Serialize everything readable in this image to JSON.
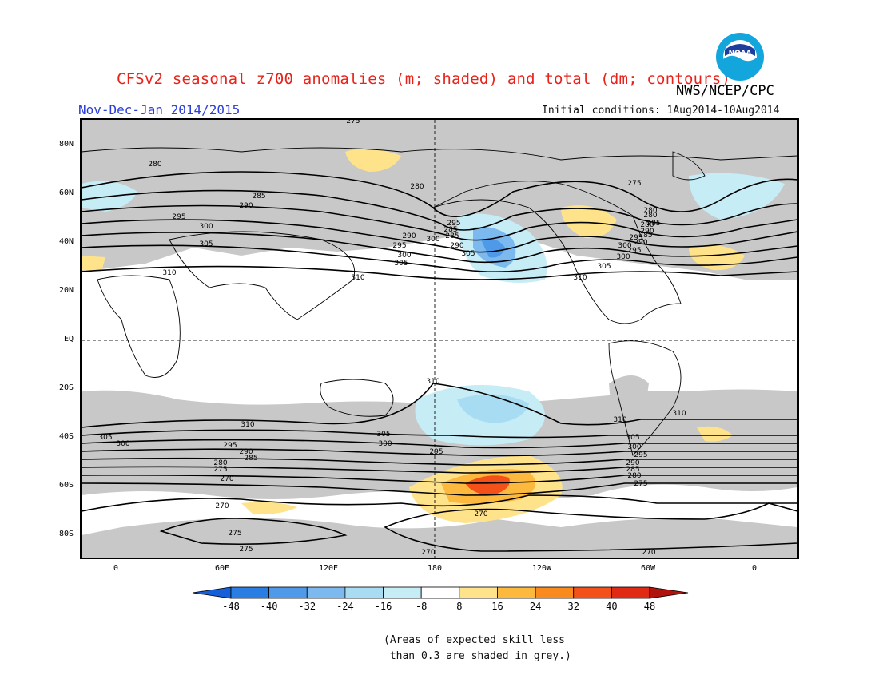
{
  "title": "CFSv2 seasonal z700 anomalies (m; shaded) and total (dm; contours)",
  "agency": "NWS/NCEP/CPC",
  "logo_text": "NOAA",
  "season": "Nov-Dec-Jan 2014/2015",
  "initial_conditions": "Initial conditions: 1Aug2014-10Aug2014",
  "lat_labels": [
    "80N",
    "60N",
    "40N",
    "20N",
    "EQ",
    "20S",
    "40S",
    "60S",
    "80S"
  ],
  "lon_labels": [
    "0",
    "60E",
    "120E",
    "180",
    "120W",
    "60W",
    "0"
  ],
  "contour_labels": [
    "275",
    "280",
    "280",
    "275",
    "280",
    "285",
    "290",
    "295",
    "300",
    "305",
    "310",
    "285",
    "290",
    "295",
    "300",
    "305",
    "310",
    "280",
    "285",
    "290",
    "295",
    "300",
    "305",
    "310",
    "285",
    "290",
    "295",
    "300",
    "305",
    "310",
    "280",
    "285",
    "290",
    "295",
    "300",
    "310",
    "310",
    "305",
    "300",
    "295",
    "290",
    "285",
    "280",
    "275",
    "270",
    "310",
    "305",
    "300",
    "295",
    "270",
    "275",
    "275",
    "270",
    "270",
    "270",
    "305",
    "300",
    "295",
    "290",
    "285",
    "280",
    "275"
  ],
  "colorbar": {
    "labels": [
      "-48",
      "-40",
      "-32",
      "-24",
      "-16",
      "-8",
      "8",
      "16",
      "24",
      "32",
      "40",
      "48"
    ],
    "colors": [
      "#1560d8",
      "#2a7de3",
      "#4f9ae8",
      "#7bb9ee",
      "#a8dcf2",
      "#c6ecf6",
      "#ffffff",
      "#ffe38a",
      "#fdb83e",
      "#f98a1d",
      "#f4511a",
      "#e02a13",
      "#b1140e"
    ]
  },
  "skill_note": "(Areas of expected skill less\n than 0.3 are shaded in grey.)",
  "colors": {
    "title": "#e8231b",
    "season": "#2b3fd8",
    "grey_shade": "#c8c8c8",
    "contour": "#000000"
  }
}
